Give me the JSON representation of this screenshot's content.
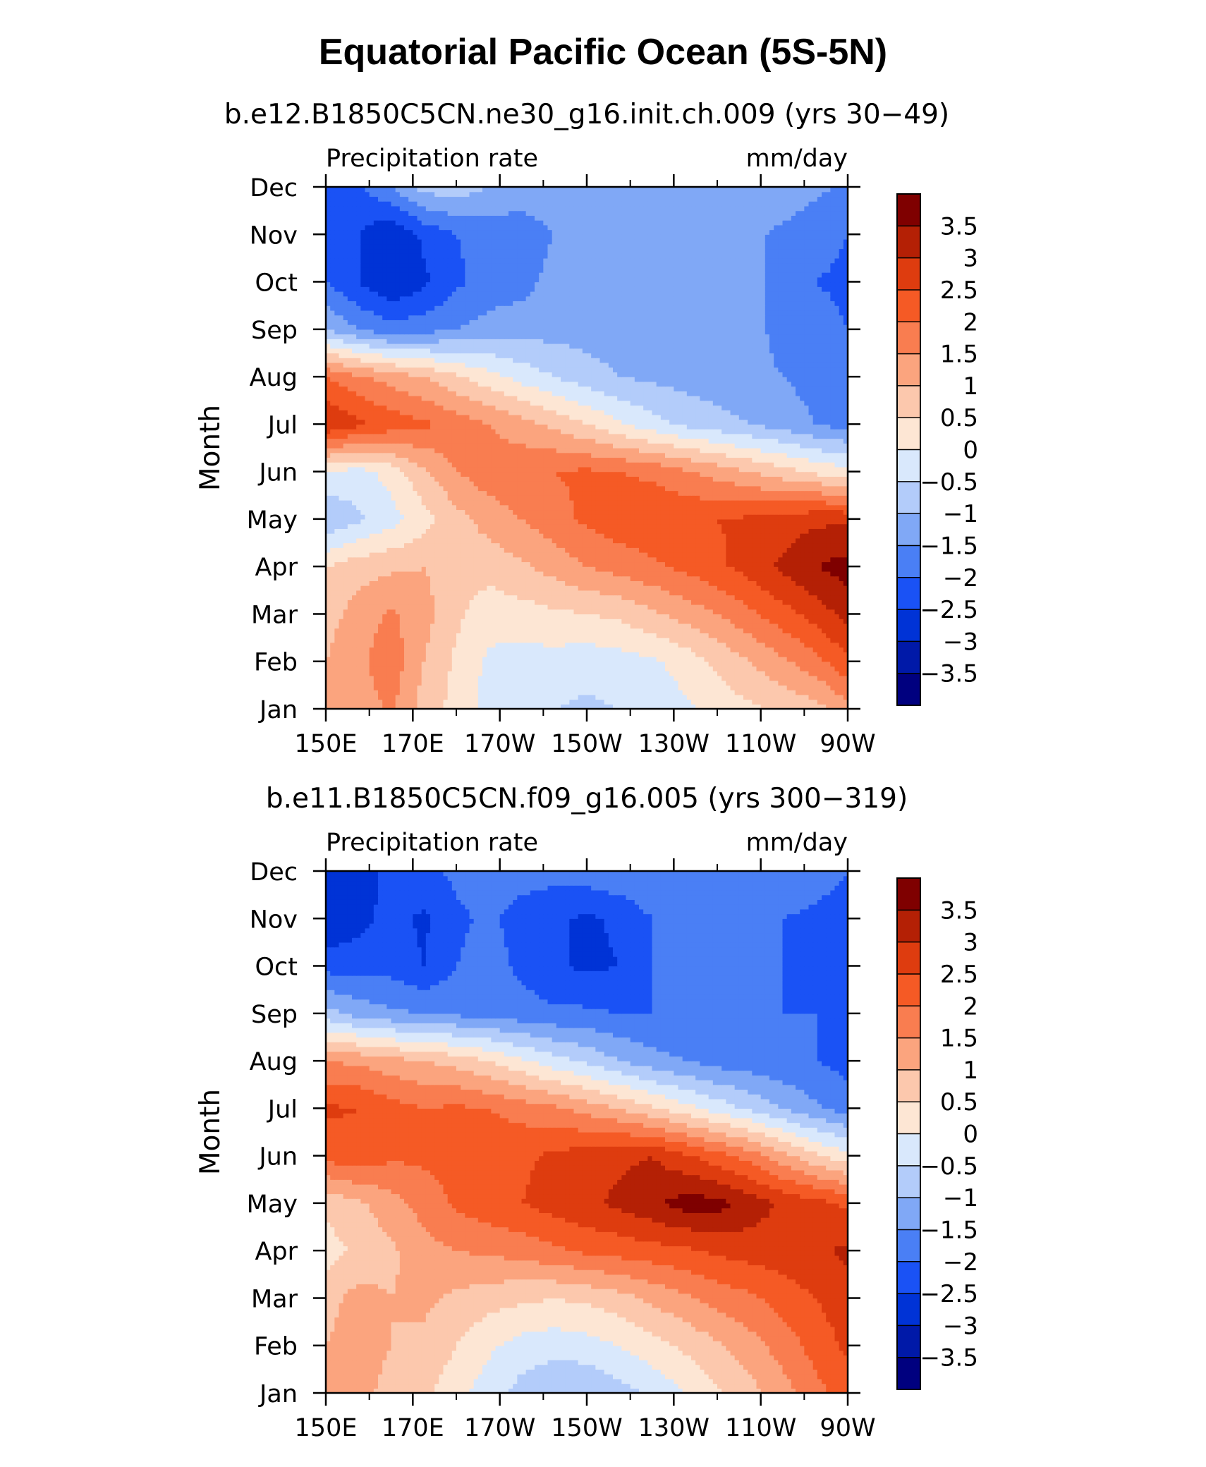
{
  "title": "Equatorial Pacific Ocean (5S-5N)",
  "chart_data": [
    {
      "type": "heatmap",
      "subtitle": "b.e12.B1850C5CN.ne30_g16.init.ch.009 (yrs 30−49)",
      "left_label": "Precipitation rate",
      "right_label": "mm/day",
      "ylabel": "Month",
      "x_ticks": [
        "150E",
        "170E",
        "170W",
        "150W",
        "130W",
        "110W",
        "90W"
      ],
      "x_values": [
        150,
        170,
        190,
        210,
        230,
        250,
        270
      ],
      "xlim": [
        150,
        270
      ],
      "y_ticks": [
        "Jan",
        "Feb",
        "Mar",
        "Apr",
        "May",
        "Jun",
        "Jul",
        "Aug",
        "Sep",
        "Oct",
        "Nov",
        "Dec"
      ],
      "z": [
        [
          1.0,
          1.2,
          1.6,
          0.8,
          0.3,
          -0.2,
          -0.3,
          -0.5,
          -0.6,
          -0.5,
          -0.3,
          -0.1,
          0.2,
          0.4,
          0.6,
          0.8,
          1.3
        ],
        [
          1.0,
          1.4,
          1.8,
          1.0,
          0.4,
          -0.1,
          -0.2,
          -0.2,
          -0.3,
          -0.2,
          -0.1,
          0.2,
          0.6,
          1.0,
          1.4,
          1.8,
          2.4
        ],
        [
          0.8,
          1.2,
          1.6,
          1.2,
          0.6,
          0.2,
          0.3,
          0.4,
          0.5,
          0.6,
          0.9,
          1.2,
          1.5,
          1.9,
          2.3,
          2.7,
          3.2
        ],
        [
          0.5,
          0.8,
          0.9,
          1.0,
          0.8,
          0.7,
          0.9,
          1.2,
          1.5,
          1.7,
          1.9,
          2.1,
          2.4,
          2.7,
          3.1,
          3.5,
          3.7
        ],
        [
          -1.0,
          -0.6,
          -0.2,
          0.3,
          0.8,
          1.2,
          1.5,
          1.8,
          2.1,
          2.3,
          2.4,
          2.4,
          2.5,
          2.6,
          2.7,
          2.9,
          2.9
        ],
        [
          0.0,
          -0.2,
          0.2,
          0.9,
          1.5,
          1.8,
          1.9,
          2.0,
          2.1,
          2.0,
          1.9,
          1.6,
          1.3,
          1.0,
          0.7,
          0.4,
          0.2
        ],
        [
          3.0,
          2.6,
          2.3,
          2.1,
          1.8,
          1.5,
          1.2,
          0.9,
          0.5,
          0.1,
          -0.3,
          -0.6,
          -0.8,
          -1.0,
          -1.2,
          -1.5,
          -1.7
        ],
        [
          2.0,
          1.6,
          1.3,
          1.0,
          0.6,
          0.2,
          -0.2,
          -0.5,
          -0.8,
          -1.0,
          -1.1,
          -1.2,
          -1.3,
          -1.4,
          -1.5,
          -1.7,
          -2.0
        ],
        [
          -1.0,
          -1.5,
          -1.8,
          -1.7,
          -1.5,
          -1.3,
          -1.2,
          -1.2,
          -1.2,
          -1.2,
          -1.2,
          -1.2,
          -1.3,
          -1.4,
          -1.6,
          -1.8,
          -2.0
        ],
        [
          -2.0,
          -2.5,
          -3.0,
          -2.6,
          -2.1,
          -1.8,
          -1.7,
          -1.3,
          -1.2,
          -1.2,
          -1.2,
          -1.2,
          -1.3,
          -1.4,
          -1.6,
          -2.0,
          -2.1
        ],
        [
          -2.0,
          -2.5,
          -3.0,
          -2.4,
          -2.0,
          -1.8,
          -1.8,
          -1.5,
          -1.2,
          -1.2,
          -1.2,
          -1.2,
          -1.3,
          -1.4,
          -1.6,
          -1.8,
          -2.0
        ],
        [
          -2.0,
          -2.1,
          -1.5,
          -0.8,
          -0.7,
          -1.0,
          -1.2,
          -1.2,
          -1.2,
          -1.2,
          -1.2,
          -1.2,
          -1.2,
          -1.2,
          -1.2,
          -1.4,
          -1.6
        ]
      ]
    },
    {
      "type": "heatmap",
      "subtitle": "b.e11.B1850C5CN.f09_g16.005 (yrs 300−319)",
      "left_label": "Precipitation rate",
      "right_label": "mm/day",
      "ylabel": "Month",
      "x_ticks": [
        "150E",
        "170E",
        "170W",
        "150W",
        "130W",
        "110W",
        "90W"
      ],
      "x_values": [
        150,
        170,
        190,
        210,
        230,
        250,
        270
      ],
      "xlim": [
        150,
        270
      ],
      "y_ticks": [
        "Jan",
        "Feb",
        "Mar",
        "Apr",
        "May",
        "Jun",
        "Jul",
        "Aug",
        "Sep",
        "Oct",
        "Nov",
        "Dec"
      ],
      "z": [
        [
          1.0,
          1.2,
          0.8,
          0.6,
          0.2,
          -0.3,
          -0.7,
          -1.0,
          -1.0,
          -0.7,
          -0.4,
          0.0,
          0.4,
          0.8,
          1.3,
          1.8,
          2.3
        ],
        [
          1.0,
          1.3,
          1.0,
          0.9,
          0.5,
          0.1,
          -0.2,
          -0.3,
          -0.2,
          0.0,
          0.3,
          0.6,
          0.9,
          1.3,
          1.7,
          2.2,
          2.6
        ],
        [
          0.8,
          1.2,
          1.0,
          1.1,
          0.9,
          0.7,
          0.6,
          0.5,
          0.6,
          0.8,
          1.1,
          1.4,
          1.7,
          1.9,
          2.2,
          2.5,
          2.8
        ],
        [
          0.3,
          0.6,
          0.9,
          1.3,
          1.5,
          1.6,
          1.7,
          1.9,
          2.1,
          2.2,
          2.3,
          2.4,
          2.6,
          2.7,
          2.8,
          2.9,
          3.1
        ],
        [
          0.6,
          0.9,
          1.3,
          1.7,
          2.1,
          2.3,
          2.5,
          2.7,
          2.9,
          3.1,
          3.4,
          3.7,
          3.7,
          3.3,
          2.9,
          2.7,
          2.4
        ],
        [
          2.2,
          2.3,
          2.1,
          2.1,
          2.2,
          2.3,
          2.4,
          2.6,
          2.8,
          2.9,
          3.0,
          2.6,
          2.2,
          1.8,
          1.2,
          0.6,
          0.2
        ],
        [
          2.6,
          2.5,
          2.2,
          2.0,
          2.1,
          2.0,
          1.8,
          1.6,
          1.3,
          1.0,
          0.6,
          0.2,
          -0.2,
          -0.6,
          -1.0,
          -1.4,
          -1.7
        ],
        [
          1.5,
          1.4,
          1.2,
          1.0,
          0.8,
          0.5,
          0.1,
          -0.3,
          -0.6,
          -1.0,
          -1.3,
          -1.5,
          -1.7,
          -1.8,
          -1.9,
          -2.0,
          -2.2
        ],
        [
          -0.8,
          -1.2,
          -1.4,
          -1.5,
          -1.6,
          -1.7,
          -1.8,
          -1.9,
          -1.9,
          -2.0,
          -2.0,
          -2.0,
          -2.0,
          -2.0,
          -2.0,
          -2.0,
          -2.2
        ],
        [
          -2.2,
          -2.2,
          -2.2,
          -2.5,
          -2.0,
          -1.8,
          -2.1,
          -2.4,
          -2.6,
          -2.5,
          -2.0,
          -1.9,
          -1.9,
          -1.9,
          -2.0,
          -2.1,
          -2.2
        ],
        [
          -3.0,
          -2.7,
          -2.3,
          -2.6,
          -2.1,
          -1.9,
          -2.2,
          -2.4,
          -2.6,
          -2.4,
          -2.0,
          -1.9,
          -1.9,
          -1.9,
          -2.0,
          -2.1,
          -2.2
        ],
        [
          -3.0,
          -2.8,
          -2.3,
          -2.1,
          -1.9,
          -1.8,
          -1.8,
          -1.8,
          -1.7,
          -1.6,
          -1.5,
          -1.5,
          -1.5,
          -1.5,
          -1.6,
          -1.8,
          -2.0
        ]
      ]
    }
  ],
  "colorbar": {
    "levels": [
      -3.5,
      -3,
      -2.5,
      -2,
      -1.5,
      -1,
      -0.5,
      0,
      0.5,
      1,
      1.5,
      2,
      2.5,
      3,
      3.5
    ],
    "labels": [
      "3.5",
      "3",
      "2.5",
      "2",
      "1.5",
      "1",
      "0.5",
      "0",
      "−0.5",
      "−1",
      "−1.5",
      "−2",
      "−2.5",
      "−3",
      "−3.5"
    ],
    "colors": [
      "#00007f",
      "#0019a8",
      "#0033d6",
      "#1a52f5",
      "#4a7ff5",
      "#80a8f6",
      "#b3ccfa",
      "#d9e8fc",
      "#fde6d4",
      "#fcc8ad",
      "#fba47e",
      "#f97d50",
      "#f55a25",
      "#de3c0f",
      "#b42005",
      "#7f0000"
    ]
  }
}
